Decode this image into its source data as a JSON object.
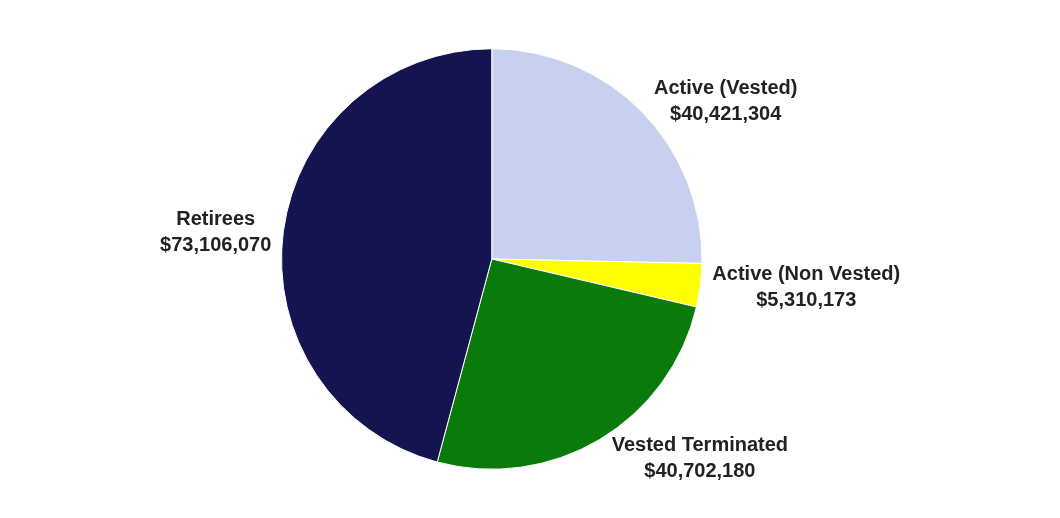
{
  "chart_data": {
    "type": "pie",
    "categories": [
      "Active (Vested)",
      "Active (Non Vested)",
      "Vested Terminated",
      "Retirees"
    ],
    "values": [
      40421304,
      5310173,
      40702180,
      73106070
    ],
    "value_labels": [
      "$40,421,304",
      "$5,310,173",
      "$40,702,180",
      "$73,106,070"
    ],
    "colors": [
      "#c8d0f0",
      "#ffff00",
      "#0a7a0a",
      "#141450"
    ],
    "legend": false
  }
}
